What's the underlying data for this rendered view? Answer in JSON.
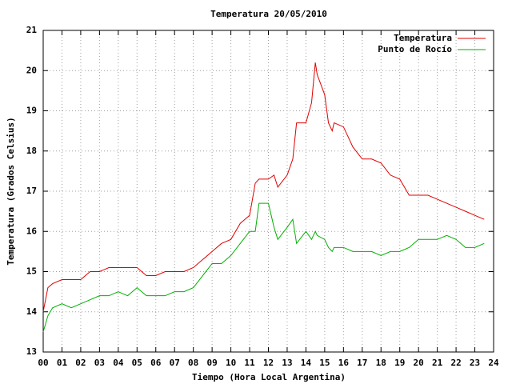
{
  "chart_data": {
    "type": "line",
    "title": "Temperatura 20/05/2010",
    "x_label": "Tiempo (Hora Local Argentina)",
    "y_label": "Temperatura (Grados Celsius)",
    "x": [
      0,
      0.25,
      0.5,
      1,
      1.5,
      2,
      2.5,
      3,
      3.5,
      4,
      4.5,
      5,
      5.5,
      6,
      6.5,
      7,
      7.5,
      8,
      8.5,
      9,
      9.5,
      10,
      10.5,
      11,
      11.3,
      11.5,
      12,
      12.3,
      12.5,
      13,
      13.3,
      13.5,
      14,
      14.3,
      14.5,
      14.6,
      15,
      15.2,
      15.4,
      15.5,
      16,
      16.5,
      17,
      17.5,
      18,
      18.5,
      19,
      19.5,
      20,
      20.5,
      21,
      21.5,
      22,
      22.5,
      23,
      23.5
    ],
    "series": [
      {
        "name": "Temperatura",
        "color": "#e00000",
        "values": [
          14.0,
          14.6,
          14.7,
          14.8,
          14.8,
          14.8,
          15.0,
          15.0,
          15.1,
          15.1,
          15.1,
          15.1,
          14.9,
          14.9,
          15.0,
          15.0,
          15.0,
          15.1,
          15.3,
          15.5,
          15.7,
          15.8,
          16.2,
          16.4,
          17.2,
          17.3,
          17.3,
          17.4,
          17.1,
          17.4,
          17.8,
          18.7,
          18.7,
          19.2,
          20.2,
          19.9,
          19.4,
          18.7,
          18.5,
          18.7,
          18.6,
          18.1,
          17.8,
          17.8,
          17.7,
          17.4,
          17.3,
          16.9,
          16.9,
          16.9,
          16.8,
          16.7,
          16.6,
          16.5,
          16.4,
          16.3
        ]
      },
      {
        "name": "Punto de Rocío",
        "color": "#00b000",
        "values": [
          13.5,
          13.9,
          14.1,
          14.2,
          14.1,
          14.2,
          14.3,
          14.4,
          14.4,
          14.5,
          14.4,
          14.6,
          14.4,
          14.4,
          14.4,
          14.5,
          14.5,
          14.6,
          14.9,
          15.2,
          15.2,
          15.4,
          15.7,
          16.0,
          16.0,
          16.7,
          16.7,
          16.1,
          15.8,
          16.1,
          16.3,
          15.7,
          16.0,
          15.8,
          16.0,
          15.9,
          15.8,
          15.6,
          15.5,
          15.6,
          15.6,
          15.5,
          15.5,
          15.5,
          15.4,
          15.5,
          15.5,
          15.6,
          15.8,
          15.8,
          15.8,
          15.9,
          15.8,
          15.6,
          15.6,
          15.7
        ]
      }
    ],
    "xlim": [
      0,
      24
    ],
    "xticks": [
      {
        "value": 0,
        "label": "00"
      },
      {
        "value": 1,
        "label": "01"
      },
      {
        "value": 2,
        "label": "02"
      },
      {
        "value": 3,
        "label": "03"
      },
      {
        "value": 4,
        "label": "04"
      },
      {
        "value": 5,
        "label": "05"
      },
      {
        "value": 6,
        "label": "06"
      },
      {
        "value": 7,
        "label": "07"
      },
      {
        "value": 8,
        "label": "08"
      },
      {
        "value": 9,
        "label": "09"
      },
      10,
      11,
      12,
      13,
      14,
      15,
      16,
      17,
      18,
      19,
      20,
      21,
      22,
      23,
      24
    ],
    "ylim": [
      13,
      21
    ],
    "yticks": [
      13,
      14,
      15,
      16,
      17,
      18,
      19,
      20,
      21
    ],
    "grid": true,
    "legend": "top-right"
  }
}
